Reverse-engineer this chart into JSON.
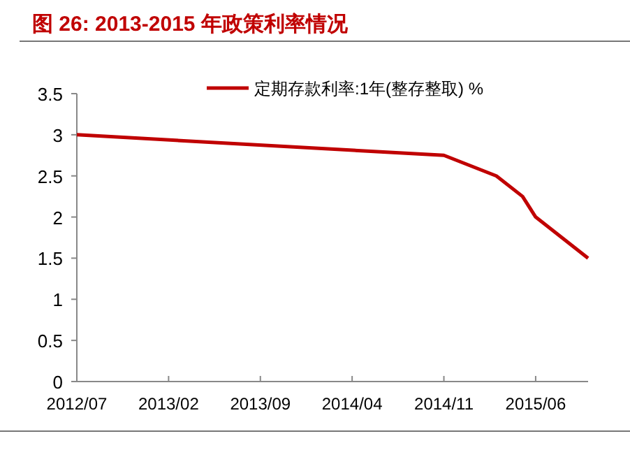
{
  "chart_data": {
    "type": "line",
    "title": "图 26: 2013-2015 年政策利率情况",
    "x": [
      "2012-07",
      "2014-11",
      "2015-03",
      "2015-05",
      "2015-06",
      "2015-08",
      "2015-10"
    ],
    "series": [
      {
        "name": "定期存款利率:1年(整存整取) %",
        "color": "#c00000",
        "values": [
          3,
          2.75,
          2.5,
          2.25,
          2,
          1.75,
          1.5
        ]
      }
    ],
    "xlim": [
      "2012-07",
      "2015-10"
    ],
    "xticks": [
      {
        "value": "2012-07",
        "label": "2012/07"
      },
      {
        "value": "2013-02",
        "label": "2013/02"
      },
      {
        "value": "2013-09",
        "label": "2013/09"
      },
      {
        "value": "2014-04",
        "label": "2014/04"
      },
      {
        "value": "2014-11",
        "label": "2014/11"
      },
      {
        "value": "2015-06",
        "label": "2015/06"
      }
    ],
    "ylim": [
      0,
      3.5
    ],
    "yticks": [
      0,
      0.5,
      1,
      1.5,
      2,
      2.5,
      3,
      3.5
    ],
    "grid": false,
    "legend": "top",
    "marker": "none",
    "line_style": "solid"
  }
}
